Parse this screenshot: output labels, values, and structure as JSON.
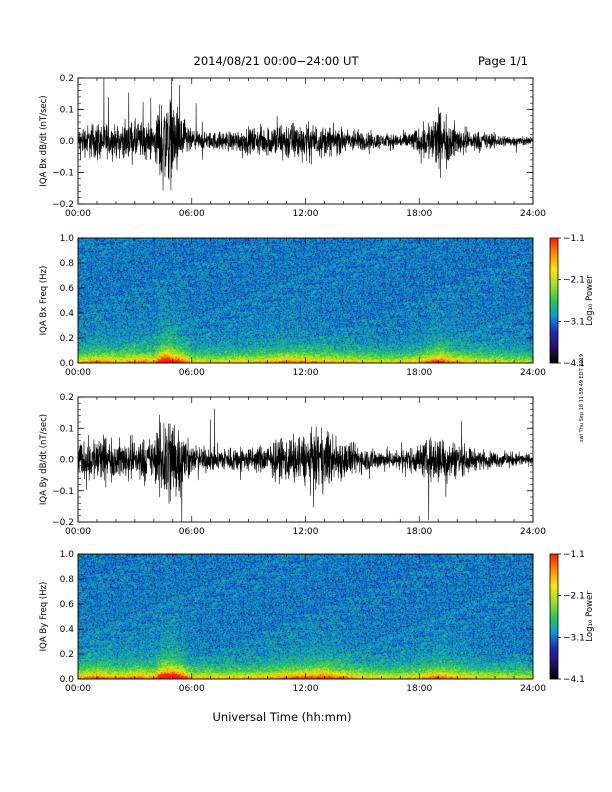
{
  "header": {
    "title": "2014/08/21   00:00−24:00 UT",
    "page": "Page 1/1"
  },
  "footer_xlabel": "Universal Time (hh:mm)",
  "side_stamp": "swl Thu Sep 18 11:59:49 EDT 2019",
  "colors": {
    "waveform": "#000000",
    "colormap": [
      "#000000",
      "#2a0f6e",
      "#1a2fb8",
      "#0a9bd6",
      "#2fc94a",
      "#9fe12a",
      "#ffe600",
      "#ff8a00",
      "#ff1e00"
    ]
  },
  "chart_data": [
    {
      "type": "line",
      "ylabel": "IQA Bx dB/dt (nT/sec)",
      "x_ticks": [
        "00:00",
        "06:00",
        "12:00",
        "18:00",
        "24:00"
      ],
      "xlim": [
        0,
        24
      ],
      "ylim": [
        -0.2,
        0.2
      ],
      "y_ticks": [
        "0.2",
        "0.1",
        "0.0",
        "−0.1",
        "−0.2"
      ],
      "envelope": {
        "hours": [
          0,
          1,
          2,
          3,
          4,
          4.5,
          5,
          6,
          7,
          8,
          9,
          10,
          11,
          12,
          13,
          14,
          15,
          16,
          17,
          18,
          19,
          20,
          21,
          22,
          23,
          24
        ],
        "amplitude": [
          0.05,
          0.08,
          0.06,
          0.08,
          0.07,
          0.2,
          0.16,
          0.04,
          0.035,
          0.04,
          0.05,
          0.06,
          0.08,
          0.07,
          0.06,
          0.05,
          0.04,
          0.03,
          0.03,
          0.05,
          0.12,
          0.06,
          0.04,
          0.03,
          0.02,
          0.015
        ]
      }
    },
    {
      "type": "heatmap",
      "ylabel": "IQA Bx Freq (Hz)",
      "x_ticks": [
        "00:00",
        "06:00",
        "12:00",
        "18:00",
        "24:00"
      ],
      "xlim": [
        0,
        24
      ],
      "ylim": [
        0,
        1.0
      ],
      "y_ticks": [
        "1.0",
        "0.8",
        "0.6",
        "0.4",
        "0.2",
        "0.0"
      ],
      "colorbar": {
        "label": "Log₁₀ Power",
        "ticks": [
          "−1.1",
          "−2.1",
          "−3.1",
          "−4.1"
        ],
        "range": [
          -4.1,
          -1.1
        ]
      }
    },
    {
      "type": "line",
      "ylabel": "IQA By dB/dt (nT/sec)",
      "x_ticks": [
        "00:00",
        "06:00",
        "12:00",
        "18:00",
        "24:00"
      ],
      "xlim": [
        0,
        24
      ],
      "ylim": [
        -0.2,
        0.2
      ],
      "y_ticks": [
        "0.2",
        "0.1",
        "0.0",
        "−0.1",
        "−0.2"
      ],
      "envelope": {
        "hours": [
          0,
          1,
          2,
          3,
          4,
          4.5,
          5,
          6,
          7,
          8,
          9,
          10,
          11,
          12,
          13,
          14,
          15,
          16,
          17,
          18,
          19,
          20,
          21,
          22,
          23,
          24
        ],
        "amplitude": [
          0.06,
          0.1,
          0.07,
          0.09,
          0.08,
          0.2,
          0.2,
          0.05,
          0.05,
          0.05,
          0.05,
          0.06,
          0.09,
          0.1,
          0.12,
          0.08,
          0.05,
          0.04,
          0.04,
          0.06,
          0.1,
          0.07,
          0.04,
          0.03,
          0.03,
          0.02
        ]
      }
    },
    {
      "type": "heatmap",
      "ylabel": "IQA By Freq (Hz)",
      "x_ticks": [
        "00:00",
        "06:00",
        "12:00",
        "18:00",
        "24:00"
      ],
      "xlim": [
        0,
        24
      ],
      "ylim": [
        0,
        1.0
      ],
      "y_ticks": [
        "1.0",
        "0.8",
        "0.6",
        "0.4",
        "0.2",
        "0.0"
      ],
      "colorbar": {
        "label": "Log₁₀ Power",
        "ticks": [
          "−1.1",
          "−2.1",
          "−3.1",
          "−4.1"
        ],
        "range": [
          -4.1,
          -1.1
        ]
      }
    }
  ]
}
